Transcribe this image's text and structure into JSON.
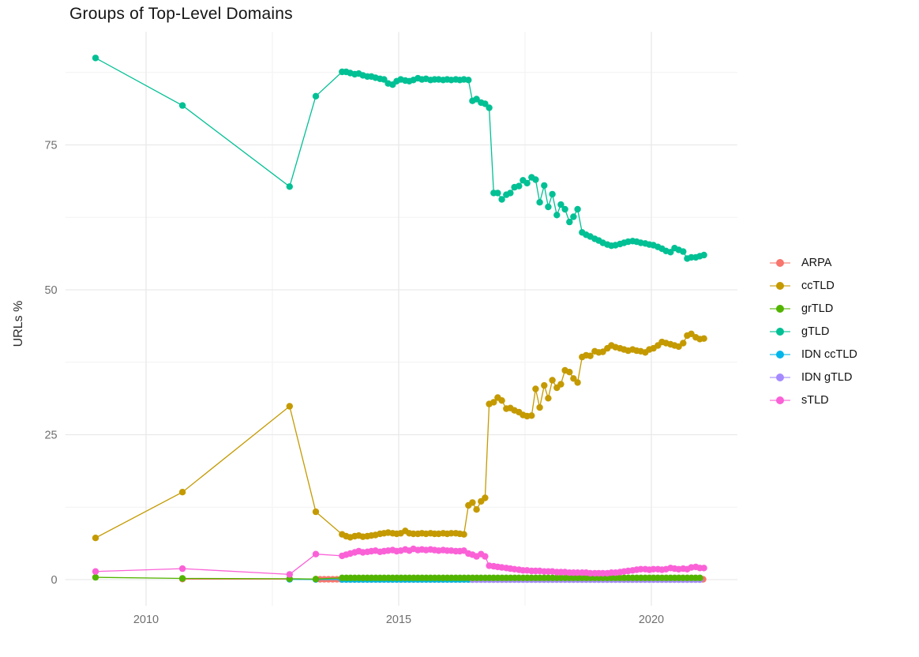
{
  "chart": {
    "title": "Groups of Top-Level Domains",
    "y_axis_title": "URLs %"
  },
  "chart_data": {
    "type": "line",
    "title": "Groups of Top-Level Domains",
    "xlabel": "",
    "ylabel": "URLs %",
    "x_ticks": [
      2010,
      2015,
      2020
    ],
    "y_ticks": [
      0,
      25,
      50,
      75
    ],
    "x_minor_ticks": [
      2012.5,
      2017.5
    ],
    "y_minor_ticks": [
      12.5,
      37.5,
      62.5,
      87.5
    ],
    "xlim": [
      2008.4,
      2021.7
    ],
    "ylim": [
      -4.5,
      94.5
    ],
    "grid": "on",
    "legend_position": "right",
    "marker": "point",
    "draw_order": [
      "ARPA",
      "IDN ccTLD",
      "IDN gTLD",
      "ccTLD",
      "gTLD",
      "grTLD",
      "sTLD"
    ],
    "series": [
      {
        "name": "ARPA",
        "color": "#F8766D",
        "points": [
          [
            2010.72,
            0.1
          ],
          [
            2012.84,
            0.08
          ]
        ],
        "flat": {
          "x0": 2013.36,
          "x1": 2021.04,
          "step": 0.0833,
          "y": 0.05
        }
      },
      {
        "name": "ccTLD",
        "color": "#C49A00",
        "points": [
          [
            2009.0,
            7.2
          ],
          [
            2010.72,
            15.1
          ],
          [
            2012.84,
            29.9
          ],
          [
            2013.36,
            11.7
          ],
          [
            2013.88,
            7.8
          ],
          [
            2013.96,
            7.5
          ],
          [
            2014.04,
            7.3
          ],
          [
            2014.13,
            7.5
          ],
          [
            2014.21,
            7.6
          ],
          [
            2014.29,
            7.4
          ],
          [
            2014.38,
            7.5
          ],
          [
            2014.46,
            7.6
          ],
          [
            2014.54,
            7.7
          ],
          [
            2014.63,
            7.9
          ],
          [
            2014.71,
            8.0
          ],
          [
            2014.79,
            8.1
          ],
          [
            2014.88,
            8.0
          ],
          [
            2014.96,
            7.9
          ],
          [
            2015.04,
            8.0
          ],
          [
            2015.13,
            8.4
          ],
          [
            2015.21,
            8.0
          ],
          [
            2015.29,
            7.9
          ],
          [
            2015.38,
            7.9
          ],
          [
            2015.46,
            8.0
          ],
          [
            2015.54,
            7.9
          ],
          [
            2015.63,
            8.0
          ],
          [
            2015.71,
            7.9
          ],
          [
            2015.79,
            7.9
          ],
          [
            2015.88,
            8.0
          ],
          [
            2015.96,
            7.9
          ],
          [
            2016.04,
            8.0
          ],
          [
            2016.13,
            8.0
          ],
          [
            2016.21,
            7.9
          ],
          [
            2016.29,
            7.8
          ],
          [
            2016.38,
            12.8
          ],
          [
            2016.46,
            13.3
          ],
          [
            2016.54,
            12.1
          ],
          [
            2016.63,
            13.5
          ],
          [
            2016.71,
            14.1
          ],
          [
            2016.79,
            30.3
          ],
          [
            2016.88,
            30.6
          ],
          [
            2016.96,
            31.4
          ],
          [
            2017.04,
            30.9
          ],
          [
            2017.13,
            29.5
          ],
          [
            2017.21,
            29.6
          ],
          [
            2017.29,
            29.2
          ],
          [
            2017.38,
            28.9
          ],
          [
            2017.46,
            28.4
          ],
          [
            2017.54,
            28.2
          ],
          [
            2017.63,
            28.3
          ],
          [
            2017.71,
            32.9
          ],
          [
            2017.79,
            29.7
          ],
          [
            2017.88,
            33.5
          ],
          [
            2017.96,
            31.3
          ],
          [
            2018.04,
            34.4
          ],
          [
            2018.13,
            33.1
          ],
          [
            2018.21,
            33.7
          ],
          [
            2018.29,
            36.1
          ],
          [
            2018.38,
            35.8
          ],
          [
            2018.46,
            34.7
          ],
          [
            2018.54,
            34.0
          ],
          [
            2018.63,
            38.4
          ],
          [
            2018.71,
            38.7
          ],
          [
            2018.79,
            38.6
          ],
          [
            2018.88,
            39.4
          ],
          [
            2018.96,
            39.2
          ],
          [
            2019.04,
            39.3
          ],
          [
            2019.13,
            39.9
          ],
          [
            2019.21,
            40.4
          ],
          [
            2019.29,
            40.1
          ],
          [
            2019.38,
            39.9
          ],
          [
            2019.46,
            39.7
          ],
          [
            2019.54,
            39.5
          ],
          [
            2019.63,
            39.7
          ],
          [
            2019.71,
            39.5
          ],
          [
            2019.79,
            39.4
          ],
          [
            2019.88,
            39.2
          ],
          [
            2019.96,
            39.7
          ],
          [
            2020.04,
            39.9
          ],
          [
            2020.13,
            40.4
          ],
          [
            2020.21,
            41.0
          ],
          [
            2020.29,
            40.8
          ],
          [
            2020.38,
            40.6
          ],
          [
            2020.46,
            40.4
          ],
          [
            2020.54,
            40.2
          ],
          [
            2020.63,
            40.8
          ],
          [
            2020.71,
            42.1
          ],
          [
            2020.79,
            42.4
          ],
          [
            2020.88,
            41.8
          ],
          [
            2020.96,
            41.5
          ],
          [
            2021.04,
            41.6
          ]
        ]
      },
      {
        "name": "grTLD",
        "color": "#53B400",
        "points": [
          [
            2009.0,
            0.4
          ],
          [
            2010.72,
            0.2
          ],
          [
            2012.84,
            0.15
          ],
          [
            2013.36,
            0.1
          ]
        ],
        "flat": {
          "x0": 2013.88,
          "x1": 2021.04,
          "step": 0.0833,
          "y": 0.3
        }
      },
      {
        "name": "gTLD",
        "color": "#00C094",
        "points": [
          [
            2009.0,
            90.0
          ],
          [
            2010.72,
            81.8
          ],
          [
            2012.84,
            67.8
          ],
          [
            2013.36,
            83.4
          ],
          [
            2013.88,
            87.6
          ],
          [
            2013.96,
            87.6
          ],
          [
            2014.04,
            87.4
          ],
          [
            2014.13,
            87.2
          ],
          [
            2014.21,
            87.3
          ],
          [
            2014.29,
            87.0
          ],
          [
            2014.38,
            86.8
          ],
          [
            2014.46,
            86.8
          ],
          [
            2014.54,
            86.6
          ],
          [
            2014.63,
            86.4
          ],
          [
            2014.71,
            86.3
          ],
          [
            2014.79,
            85.6
          ],
          [
            2014.88,
            85.4
          ],
          [
            2014.96,
            86.0
          ],
          [
            2015.04,
            86.3
          ],
          [
            2015.13,
            86.1
          ],
          [
            2015.21,
            86.0
          ],
          [
            2015.29,
            86.2
          ],
          [
            2015.38,
            86.5
          ],
          [
            2015.46,
            86.3
          ],
          [
            2015.54,
            86.4
          ],
          [
            2015.63,
            86.2
          ],
          [
            2015.71,
            86.3
          ],
          [
            2015.79,
            86.3
          ],
          [
            2015.88,
            86.2
          ],
          [
            2015.96,
            86.3
          ],
          [
            2016.04,
            86.2
          ],
          [
            2016.13,
            86.3
          ],
          [
            2016.21,
            86.2
          ],
          [
            2016.29,
            86.3
          ],
          [
            2016.38,
            86.2
          ],
          [
            2016.46,
            82.6
          ],
          [
            2016.54,
            82.9
          ],
          [
            2016.63,
            82.3
          ],
          [
            2016.71,
            82.1
          ],
          [
            2016.79,
            81.4
          ],
          [
            2016.88,
            66.7
          ],
          [
            2016.96,
            66.7
          ],
          [
            2017.04,
            65.6
          ],
          [
            2017.13,
            66.4
          ],
          [
            2017.21,
            66.7
          ],
          [
            2017.29,
            67.7
          ],
          [
            2017.38,
            67.9
          ],
          [
            2017.46,
            68.9
          ],
          [
            2017.54,
            68.4
          ],
          [
            2017.63,
            69.4
          ],
          [
            2017.71,
            69.0
          ],
          [
            2017.79,
            65.1
          ],
          [
            2017.88,
            68.0
          ],
          [
            2017.96,
            64.3
          ],
          [
            2018.04,
            66.5
          ],
          [
            2018.13,
            62.9
          ],
          [
            2018.21,
            64.7
          ],
          [
            2018.29,
            63.9
          ],
          [
            2018.38,
            61.7
          ],
          [
            2018.46,
            62.6
          ],
          [
            2018.54,
            63.9
          ],
          [
            2018.63,
            59.9
          ],
          [
            2018.71,
            59.5
          ],
          [
            2018.79,
            59.2
          ],
          [
            2018.88,
            58.8
          ],
          [
            2018.96,
            58.5
          ],
          [
            2019.04,
            58.1
          ],
          [
            2019.13,
            57.8
          ],
          [
            2019.21,
            57.6
          ],
          [
            2019.29,
            57.7
          ],
          [
            2019.38,
            57.9
          ],
          [
            2019.46,
            58.1
          ],
          [
            2019.54,
            58.3
          ],
          [
            2019.63,
            58.4
          ],
          [
            2019.71,
            58.3
          ],
          [
            2019.79,
            58.1
          ],
          [
            2019.88,
            58.0
          ],
          [
            2019.96,
            57.8
          ],
          [
            2020.04,
            57.7
          ],
          [
            2020.13,
            57.4
          ],
          [
            2020.21,
            57.1
          ],
          [
            2020.29,
            56.7
          ],
          [
            2020.38,
            56.5
          ],
          [
            2020.46,
            57.2
          ],
          [
            2020.54,
            56.9
          ],
          [
            2020.63,
            56.6
          ],
          [
            2020.71,
            55.4
          ],
          [
            2020.79,
            55.6
          ],
          [
            2020.88,
            55.6
          ],
          [
            2020.96,
            55.8
          ],
          [
            2021.04,
            56.0
          ]
        ]
      },
      {
        "name": "IDN ccTLD",
        "color": "#00B6EB",
        "points": [
          [
            2012.84,
            0.05
          ],
          [
            2013.36,
            0.03
          ]
        ],
        "flat": {
          "x0": 2013.88,
          "x1": 2021.04,
          "step": 0.0833,
          "y": 0.02
        }
      },
      {
        "name": "IDN gTLD",
        "color": "#A58AFF",
        "points": [],
        "flat": {
          "x0": 2016.46,
          "x1": 2021.04,
          "step": 0.0833,
          "y": 0.0
        }
      },
      {
        "name": "sTLD",
        "color": "#FB61D7",
        "points": [
          [
            2009.0,
            1.4
          ],
          [
            2010.72,
            1.9
          ],
          [
            2012.84,
            0.9
          ],
          [
            2013.36,
            4.4
          ],
          [
            2013.88,
            4.1
          ],
          [
            2013.96,
            4.3
          ],
          [
            2014.04,
            4.5
          ],
          [
            2014.13,
            4.7
          ],
          [
            2014.21,
            4.9
          ],
          [
            2014.29,
            4.7
          ],
          [
            2014.38,
            4.8
          ],
          [
            2014.46,
            4.9
          ],
          [
            2014.54,
            5.0
          ],
          [
            2014.63,
            4.8
          ],
          [
            2014.71,
            4.9
          ],
          [
            2014.79,
            5.0
          ],
          [
            2014.88,
            5.1
          ],
          [
            2014.96,
            4.9
          ],
          [
            2015.04,
            5.0
          ],
          [
            2015.13,
            5.2
          ],
          [
            2015.21,
            5.0
          ],
          [
            2015.29,
            5.3
          ],
          [
            2015.38,
            5.1
          ],
          [
            2015.46,
            5.2
          ],
          [
            2015.54,
            5.1
          ],
          [
            2015.63,
            5.2
          ],
          [
            2015.71,
            5.1
          ],
          [
            2015.79,
            5.0
          ],
          [
            2015.88,
            5.1
          ],
          [
            2015.96,
            5.0
          ],
          [
            2016.04,
            5.0
          ],
          [
            2016.13,
            4.9
          ],
          [
            2016.21,
            4.9
          ],
          [
            2016.29,
            5.0
          ],
          [
            2016.38,
            4.5
          ],
          [
            2016.46,
            4.3
          ],
          [
            2016.54,
            4.0
          ],
          [
            2016.63,
            4.4
          ],
          [
            2016.71,
            4.0
          ],
          [
            2016.79,
            2.4
          ],
          [
            2016.88,
            2.3
          ],
          [
            2016.96,
            2.2
          ],
          [
            2017.04,
            2.1
          ],
          [
            2017.13,
            2.0
          ],
          [
            2017.21,
            1.9
          ],
          [
            2017.29,
            1.8
          ],
          [
            2017.38,
            1.7
          ],
          [
            2017.46,
            1.6
          ],
          [
            2017.54,
            1.6
          ],
          [
            2017.63,
            1.5
          ],
          [
            2017.71,
            1.5
          ],
          [
            2017.79,
            1.5
          ],
          [
            2017.88,
            1.4
          ],
          [
            2017.96,
            1.4
          ],
          [
            2018.04,
            1.4
          ],
          [
            2018.13,
            1.3
          ],
          [
            2018.21,
            1.3
          ],
          [
            2018.29,
            1.3
          ],
          [
            2018.38,
            1.2
          ],
          [
            2018.46,
            1.2
          ],
          [
            2018.54,
            1.2
          ],
          [
            2018.63,
            1.2
          ],
          [
            2018.71,
            1.2
          ],
          [
            2018.79,
            1.1
          ],
          [
            2018.88,
            1.1
          ],
          [
            2018.96,
            1.1
          ],
          [
            2019.04,
            1.1
          ],
          [
            2019.13,
            1.1
          ],
          [
            2019.21,
            1.2
          ],
          [
            2019.29,
            1.2
          ],
          [
            2019.38,
            1.3
          ],
          [
            2019.46,
            1.4
          ],
          [
            2019.54,
            1.5
          ],
          [
            2019.63,
            1.6
          ],
          [
            2019.71,
            1.7
          ],
          [
            2019.79,
            1.8
          ],
          [
            2019.88,
            1.8
          ],
          [
            2019.96,
            1.7
          ],
          [
            2020.04,
            1.8
          ],
          [
            2020.13,
            1.8
          ],
          [
            2020.21,
            1.7
          ],
          [
            2020.29,
            1.8
          ],
          [
            2020.38,
            2.0
          ],
          [
            2020.46,
            1.9
          ],
          [
            2020.54,
            1.8
          ],
          [
            2020.63,
            1.9
          ],
          [
            2020.71,
            1.8
          ],
          [
            2020.79,
            2.1
          ],
          [
            2020.88,
            2.2
          ],
          [
            2020.96,
            2.0
          ],
          [
            2021.04,
            2.0
          ]
        ]
      }
    ]
  },
  "legend": {
    "items": [
      {
        "label": "ARPA"
      },
      {
        "label": "ccTLD"
      },
      {
        "label": "grTLD"
      },
      {
        "label": "gTLD"
      },
      {
        "label": "IDN ccTLD"
      },
      {
        "label": "IDN gTLD"
      },
      {
        "label": "sTLD"
      }
    ]
  }
}
